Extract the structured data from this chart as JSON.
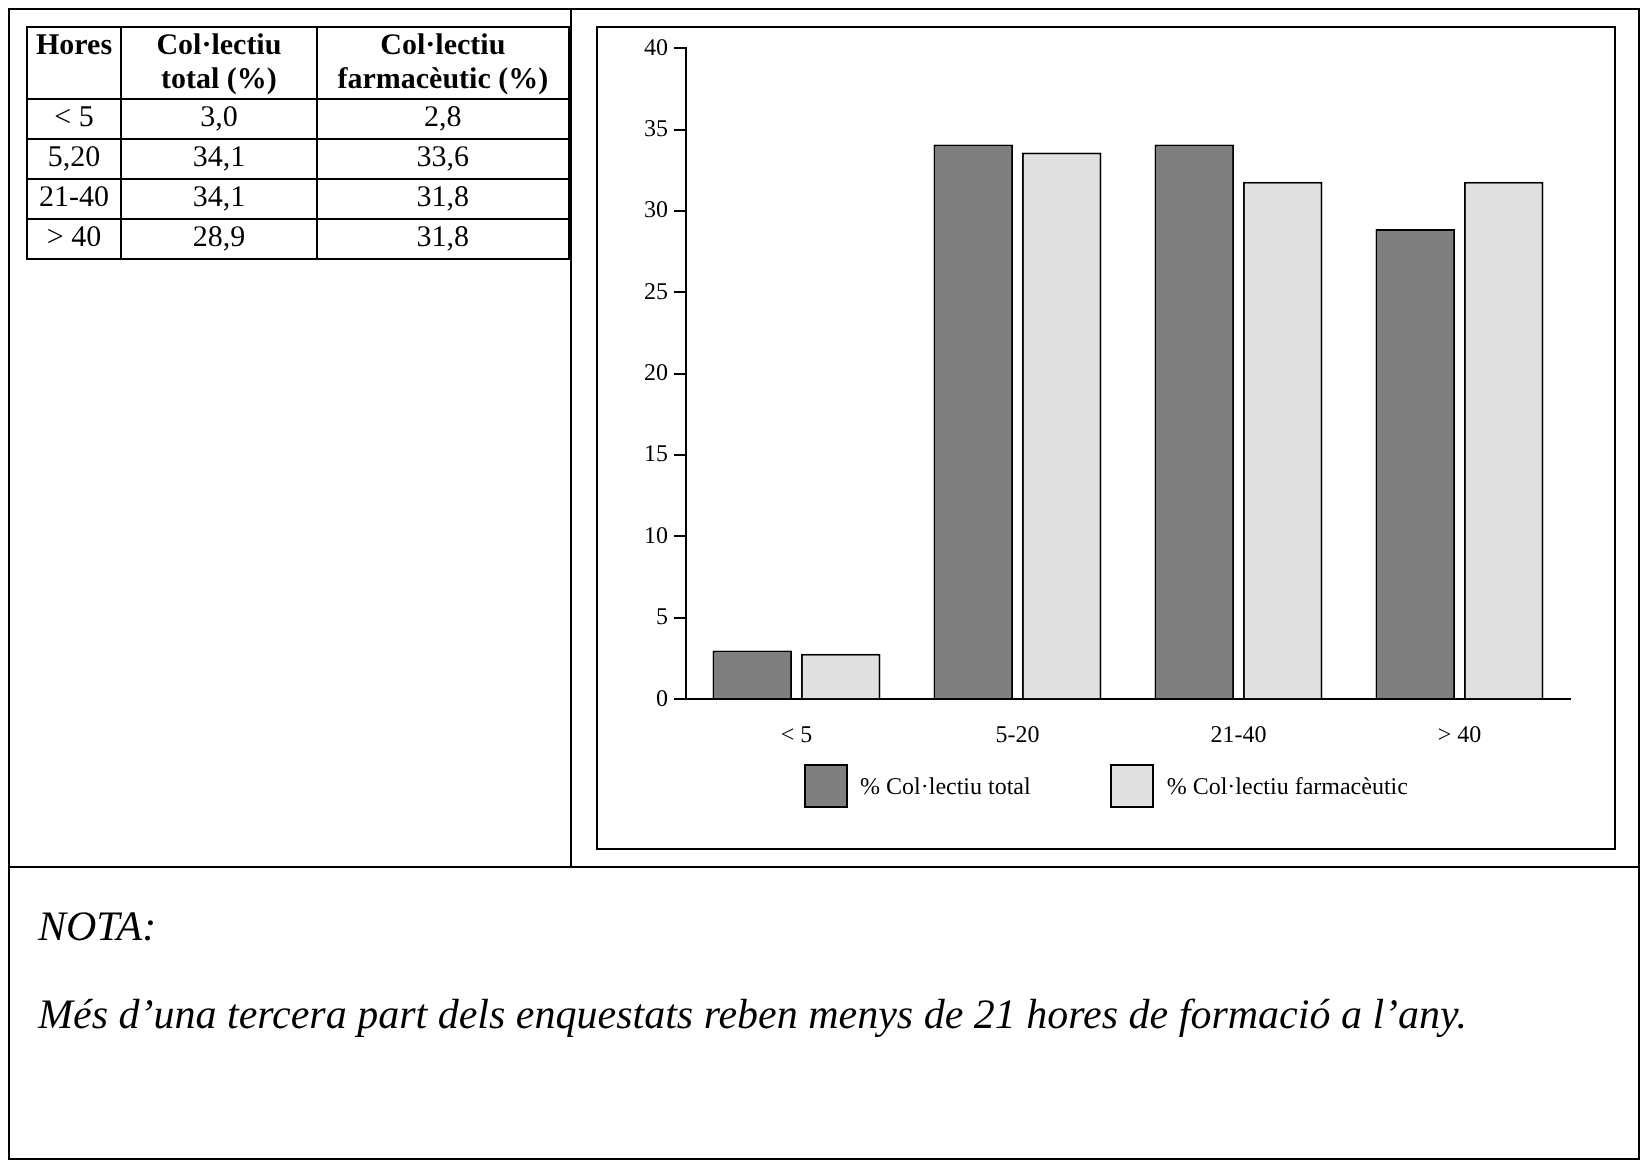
{
  "chart_data": {
    "type": "bar",
    "categories": [
      "< 5",
      "5-20",
      "21-40",
      "> 40"
    ],
    "series": [
      {
        "name": "% Col·lectiu total",
        "color": "#7f7f7f",
        "values": [
          3.0,
          34.1,
          34.1,
          28.9
        ]
      },
      {
        "name": "% Col·lectiu farmacèutic",
        "color": "#e0e0e0",
        "values": [
          2.8,
          33.6,
          31.8,
          31.8
        ]
      }
    ],
    "ylim": [
      0,
      40
    ],
    "yticks": [
      0,
      5,
      10,
      15,
      20,
      25,
      30,
      35,
      40
    ],
    "grid": false,
    "legend": "bottom",
    "annotations": [
      "Hores",
      "Col·lectiu total (%)",
      "Col·lectiu farmacèutic (%)",
      "< 5",
      "3,0",
      "2,8",
      "5,20",
      "34,1",
      "33,6",
      "21-40",
      "34,1",
      "31,8",
      "> 40",
      "28,9",
      "31,8",
      "NOTA:",
      "Més d’una tercera part dels enquestats reben menys de 21 hores de formació a l’any."
    ]
  }
}
